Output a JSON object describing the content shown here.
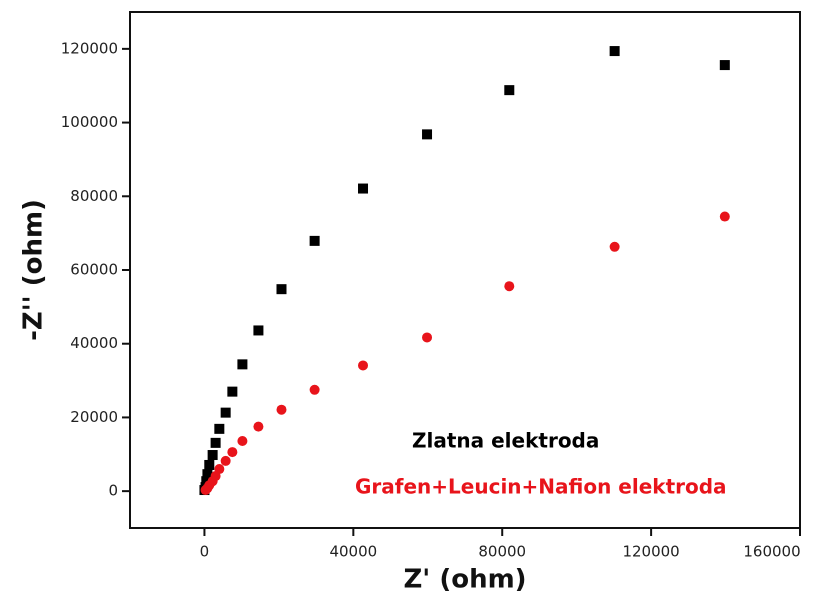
{
  "chart_data": {
    "type": "scatter",
    "xlabel": "Z' (ohm)",
    "ylabel": "-Z'' (ohm)",
    "xlim": [
      -20000,
      160000
    ],
    "ylim": [
      -10000,
      130000
    ],
    "xticks": [
      0,
      40000,
      80000,
      120000,
      160000
    ],
    "yticks": [
      0,
      20000,
      40000,
      60000,
      80000,
      100000,
      120000
    ],
    "series": [
      {
        "name": "Zlatna elektroda",
        "color": "#000000",
        "marker": "square",
        "x": [
          139800,
          110200,
          81900,
          59800,
          42600,
          29600,
          20700,
          14500,
          10200,
          7500,
          5700,
          4000,
          3000,
          2200,
          1300,
          800,
          500,
          300,
          0
        ],
        "values": [
          115600,
          119400,
          108800,
          96800,
          82100,
          67900,
          54800,
          43600,
          34400,
          27000,
          21300,
          16900,
          13100,
          9800,
          7100,
          4600,
          2700,
          1100,
          300
        ]
      },
      {
        "name": "Grafen+Leucin+Nafion elektroda",
        "color": "#e8141b",
        "marker": "circle",
        "x": [
          139800,
          110200,
          81900,
          59800,
          42600,
          29600,
          20700,
          14500,
          10200,
          7500,
          5700,
          4000,
          3000,
          2200,
          1300,
          800,
          300
        ],
        "values": [
          74500,
          66300,
          55600,
          41700,
          34100,
          27500,
          22100,
          17500,
          13600,
          10600,
          8200,
          6000,
          4100,
          2700,
          1600,
          800,
          300
        ]
      }
    ]
  }
}
